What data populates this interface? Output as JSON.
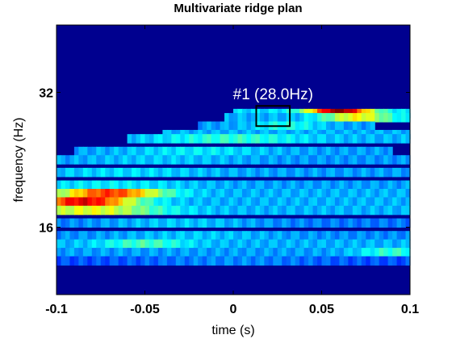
{
  "chart_data": {
    "type": "heatmap",
    "title": "Multivariate ridge plan",
    "xlabel": "time (s)",
    "ylabel": "frequency (Hz)",
    "xlim": [
      -0.1,
      0.1
    ],
    "ylim": [
      8,
      40
    ],
    "x_ticks": [
      {
        "value": -0.1,
        "label": "-0.1"
      },
      {
        "value": -0.05,
        "label": "-0.05"
      },
      {
        "value": 0,
        "label": "0"
      },
      {
        "value": 0.05,
        "label": "0.05"
      },
      {
        "value": 0.1,
        "label": "0.1"
      }
    ],
    "y_ticks": [
      {
        "value": 32,
        "label": "32"
      },
      {
        "value": 16,
        "label": "16"
      }
    ],
    "colormap": "jet",
    "background_color": "#00008f",
    "bands": [
      {
        "freq": 29.5,
        "start": 0.0,
        "end": 0.1,
        "peak_time": 0.06,
        "peak": 1.0,
        "width": 0.018,
        "base": 0.34
      },
      {
        "freq": 29.0,
        "start": -0.005,
        "end": 0.1,
        "peak_time": 0.07,
        "peak": 0.62,
        "width": 0.02,
        "base": 0.3
      },
      {
        "freq": 28.0,
        "start": -0.02,
        "end": 0.08,
        "peak_time": 0.03,
        "peak": 0.4,
        "width": 0.02,
        "base": 0.28
      },
      {
        "freq": 27.0,
        "start": -0.04,
        "end": 0.1,
        "peak_time": -0.03,
        "peak": 0.3,
        "width": 0.03,
        "base": 0.3
      },
      {
        "freq": 26.5,
        "start": -0.06,
        "end": 0.1,
        "peak_time": 0.0,
        "peak": 0.42,
        "width": 0.04,
        "base": 0.3
      },
      {
        "freq": 25.0,
        "start": -0.09,
        "end": 0.09,
        "peak_time": -0.02,
        "peak": 0.36,
        "width": 0.04,
        "base": 0.28
      },
      {
        "freq": 24.0,
        "start": -0.1,
        "end": 0.1,
        "peak_time": -0.04,
        "peak": 0.32,
        "width": 0.05,
        "base": 0.27
      },
      {
        "freq": 22.5,
        "start": -0.1,
        "end": 0.1,
        "peak_time": -0.06,
        "peak": 0.34,
        "width": 0.05,
        "base": 0.28
      },
      {
        "freq": 21.0,
        "start": -0.1,
        "end": 0.1,
        "peak_time": -0.07,
        "peak": 0.36,
        "width": 0.05,
        "base": 0.28
      },
      {
        "freq": 20.0,
        "start": -0.1,
        "end": 0.1,
        "peak_time": -0.07,
        "peak": 0.82,
        "width": 0.03,
        "base": 0.3
      },
      {
        "freq": 19.0,
        "start": -0.1,
        "end": 0.1,
        "peak_time": -0.085,
        "peak": 0.9,
        "width": 0.03,
        "base": 0.3
      },
      {
        "freq": 18.0,
        "start": -0.1,
        "end": 0.1,
        "peak_time": -0.08,
        "peak": 0.6,
        "width": 0.04,
        "base": 0.3
      },
      {
        "freq": 16.5,
        "start": -0.1,
        "end": 0.1,
        "peak_time": -0.03,
        "peak": 0.32,
        "width": 0.05,
        "base": 0.24
      },
      {
        "freq": 15.0,
        "start": -0.1,
        "end": 0.1,
        "peak_time": -0.02,
        "peak": 0.32,
        "width": 0.05,
        "base": 0.26
      },
      {
        "freq": 14.0,
        "start": -0.1,
        "end": 0.1,
        "peak_time": -0.05,
        "peak": 0.44,
        "width": 0.025,
        "base": 0.3
      },
      {
        "freq": 13.0,
        "start": -0.1,
        "end": 0.1,
        "peak_time": 0.09,
        "peak": 0.42,
        "width": 0.02,
        "base": 0.28
      },
      {
        "freq": 12.0,
        "start": -0.1,
        "end": 0.1,
        "peak_time": 0.0,
        "peak": 0.26,
        "width": 0.05,
        "base": 0.2
      }
    ],
    "annotation": {
      "label": "#1 (28.0Hz)",
      "t_start": 0.013,
      "t_end": 0.032,
      "f_low": 28.0,
      "f_high": 30.4,
      "box_color": "#000000",
      "text_color": "#ffffff"
    }
  }
}
